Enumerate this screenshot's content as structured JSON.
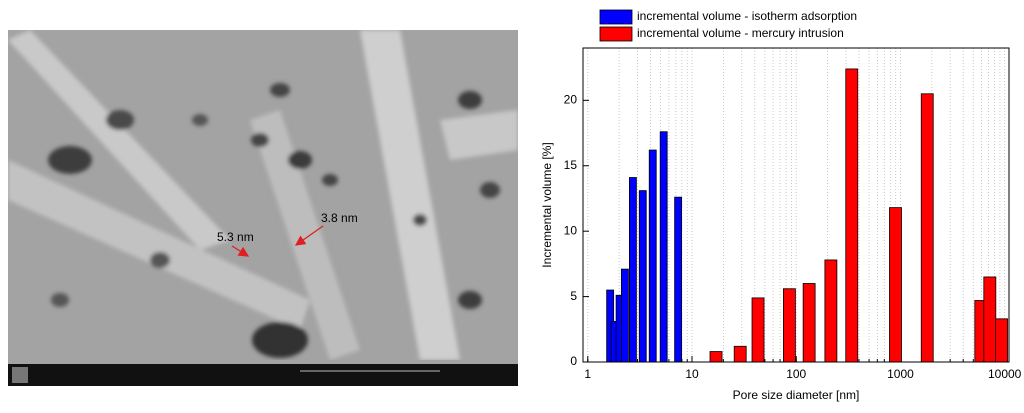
{
  "image": {
    "annotations": [
      "5.3 nm",
      "3.8 nm"
    ]
  },
  "chart_data": {
    "type": "bar",
    "xscale": "log",
    "grid": true,
    "xlabel": "Pore size diameter [nm]",
    "ylabel": "Incremental volume [%]",
    "xlim": [
      0.9,
      11000
    ],
    "xticks": [
      1,
      10,
      100,
      1000,
      10000
    ],
    "ylim": [
      0,
      24
    ],
    "yticks": [
      0,
      5,
      10,
      15,
      20
    ],
    "series": [
      {
        "name": "incremental volume - isotherm adsorption",
        "color": "#0000ff",
        "x": [
          1.64,
          1.81,
          2.02,
          2.27,
          2.71,
          3.37,
          4.2,
          5.35,
          7.36
        ],
        "values": [
          5.5,
          3.1,
          5.1,
          7.1,
          14.1,
          13.1,
          16.2,
          17.6,
          12.6
        ]
      },
      {
        "name": "incremental volume - mercury intrusion",
        "color": "#ff0000",
        "x": [
          17,
          29,
          43,
          86,
          133,
          215,
          341,
          896,
          1807,
          5900,
          7200,
          9350
        ],
        "values": [
          0.8,
          1.2,
          4.9,
          5.6,
          6.0,
          7.8,
          22.4,
          11.8,
          20.5,
          4.7,
          6.5,
          3.3
        ]
      }
    ]
  }
}
